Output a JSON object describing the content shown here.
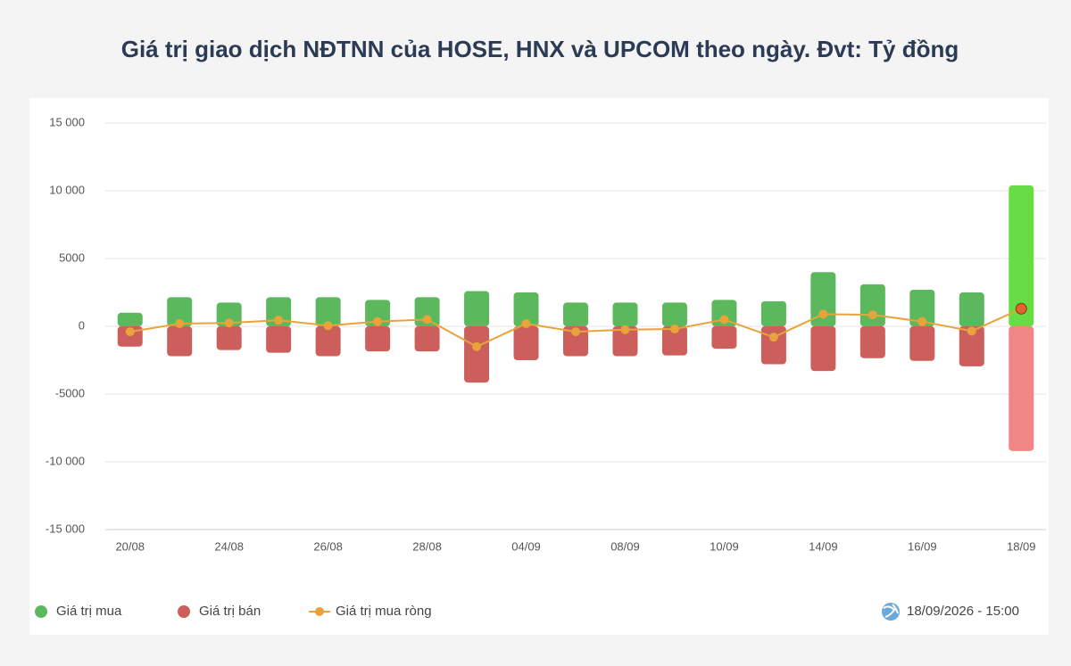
{
  "chart_data": {
    "type": "bar-line",
    "title": "Giá trị giao dịch NĐTNN của HOSE, HNX và UPCOM theo ngày. Đvt: Tỷ đồng",
    "categories": [
      "20/08",
      null,
      "24/08",
      null,
      "26/08",
      null,
      "28/08",
      null,
      "04/09",
      null,
      "08/09",
      null,
      "10/09",
      null,
      "14/09",
      null,
      "16/09",
      null,
      "18/09"
    ],
    "series": [
      {
        "name": "Giá trị mua",
        "color": "#5cb85c",
        "last_color": "#66dd44",
        "values": [
          1000,
          2150,
          1750,
          2150,
          2150,
          1950,
          2150,
          2600,
          2500,
          1750,
          1750,
          1750,
          1950,
          1850,
          4000,
          3100,
          2700,
          2500,
          10400
        ]
      },
      {
        "name": "Giá trị bán",
        "color": "#cc5f5c",
        "last_color": "#f08686",
        "values": [
          -1500,
          -2200,
          -1750,
          -1950,
          -2200,
          -1850,
          -1850,
          -4150,
          -2500,
          -2200,
          -2200,
          -2150,
          -1650,
          -2800,
          -3300,
          -2350,
          -2550,
          -2950,
          -9200
        ]
      },
      {
        "name": "Giá trị mua ròng",
        "color": "#e8a33a",
        "last_color": "#e0622e",
        "values": [
          -400,
          200,
          250,
          450,
          50,
          350,
          500,
          -1500,
          200,
          -400,
          -250,
          -200,
          500,
          -800,
          900,
          850,
          350,
          -350,
          1300
        ]
      }
    ],
    "ylim": [
      -15000,
      15000
    ],
    "yticks": [
      {
        "value": -15000,
        "label": "-15 000"
      },
      {
        "value": -10000,
        "label": "-10 000"
      },
      -5000,
      0,
      5000,
      {
        "value": 10000,
        "label": "10 000"
      },
      {
        "value": 15000,
        "label": "15 000"
      }
    ],
    "grid": true,
    "timestamp": "18/09/2026 - 15:00"
  }
}
